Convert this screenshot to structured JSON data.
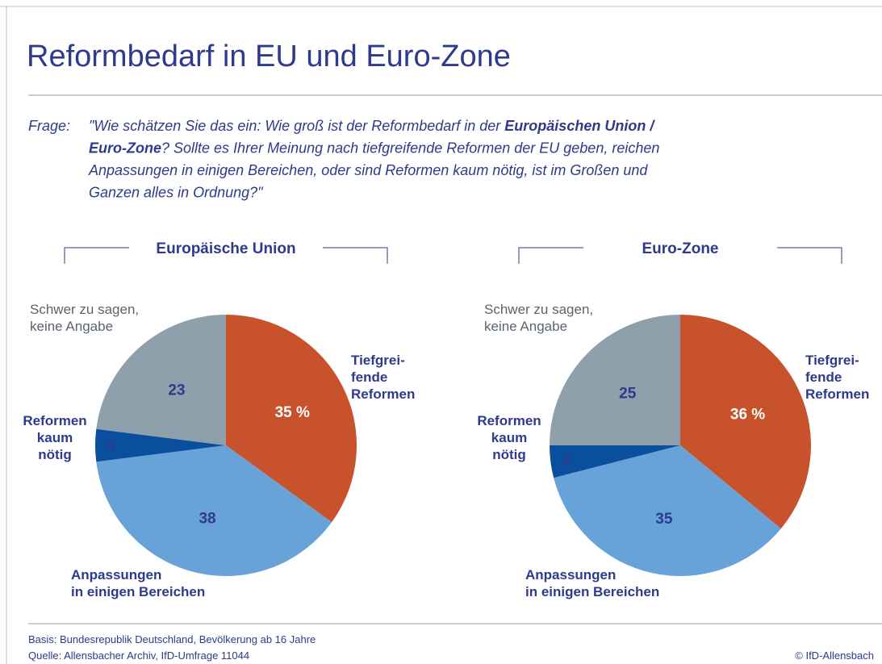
{
  "title": "Reformbedarf in EU und Euro-Zone",
  "question": {
    "label": "Frage:",
    "lines": [
      [
        {
          "text": "\"Wie schätzen Sie das ein: Wie groß ist der Reformbedarf in der "
        },
        {
          "text": "Europäischen Union /",
          "bold": true
        }
      ],
      [
        {
          "text": "Euro-Zone",
          "bold": true
        },
        {
          "text": "? Sollte es Ihrer Meinung nach tiefgreifende Reformen der EU geben, reichen"
        }
      ],
      [
        {
          "text": "Anpassungen in einigen Bereichen, oder sind Reformen kaum nötig, ist im Großen und"
        }
      ],
      [
        {
          "text": "Ganzen alles in Ordnung?\""
        }
      ]
    ]
  },
  "chart_data": [
    {
      "type": "pie",
      "title": "Europäische Union",
      "categories": [
        "Tiefgrei-\nfende\nReformen",
        "Anpassungen\nin einigen Bereichen",
        "Reformen\nkaum\nnötig",
        "Schwer zu sagen,\nkeine Angabe"
      ],
      "values": [
        35,
        38,
        4,
        23
      ],
      "value_labels": [
        "35 %",
        "38",
        "4",
        "23"
      ],
      "colors": [
        "#c8522c",
        "#67a3d9",
        "#0a4f9e",
        "#8fa0ad"
      ]
    },
    {
      "type": "pie",
      "title": "Euro-Zone",
      "categories": [
        "Tiefgrei-\nfende\nReformen",
        "Anpassungen\nin einigen Bereichen",
        "Reformen\nkaum\nnötig",
        "Schwer zu sagen,\nkeine Angabe"
      ],
      "values": [
        36,
        35,
        4,
        25
      ],
      "value_labels": [
        "36 %",
        "35",
        "4",
        "25"
      ],
      "colors": [
        "#c8522c",
        "#67a3d9",
        "#0a4f9e",
        "#8fa0ad"
      ]
    }
  ],
  "footer": {
    "basis": "Basis: Bundesrepublik Deutschland, Bevölkerung ab 16 Jahre",
    "source": "Quelle: Allensbacher Archiv, IfD-Umfrage 11044",
    "copyright": "© IfD-Allensbach"
  }
}
